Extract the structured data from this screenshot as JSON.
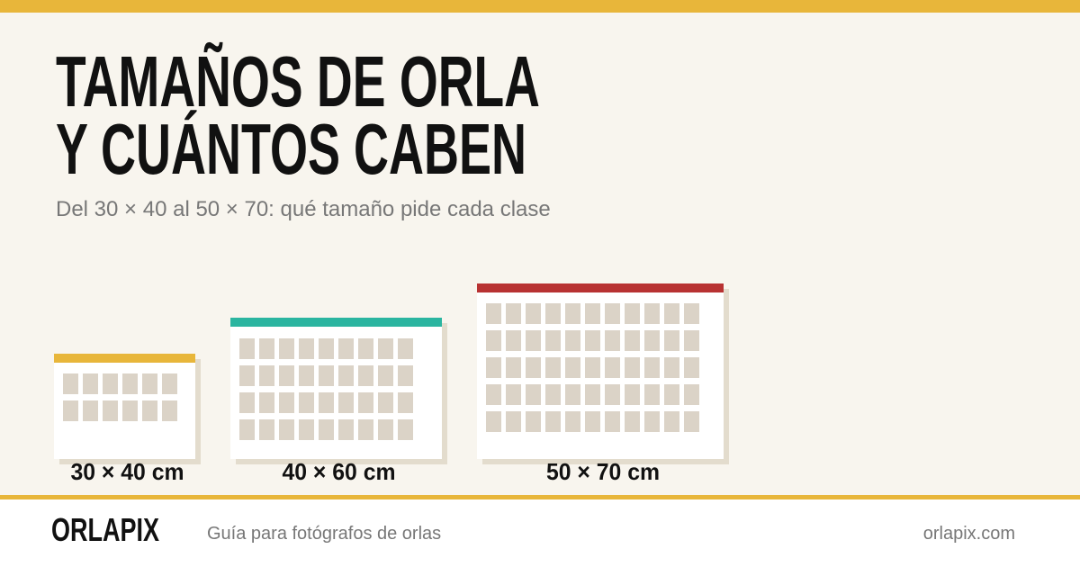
{
  "header": {
    "title_lines": [
      "TAMAÑOS DE ORLA",
      "Y CUÁNTOS CABEN"
    ],
    "subtitle": "Del 30 × 40 al 50 × 70: qué tamaño pide cada clase"
  },
  "sizes": [
    {
      "label": "30 × 40 cm"
    },
    {
      "label": "40 × 60 cm"
    },
    {
      "label": "50 × 70 cm"
    }
  ],
  "footer": {
    "brand": "ORLAPIX",
    "tagline": "Guía para fotógrafos de orlas",
    "url": "orlapix.com"
  }
}
